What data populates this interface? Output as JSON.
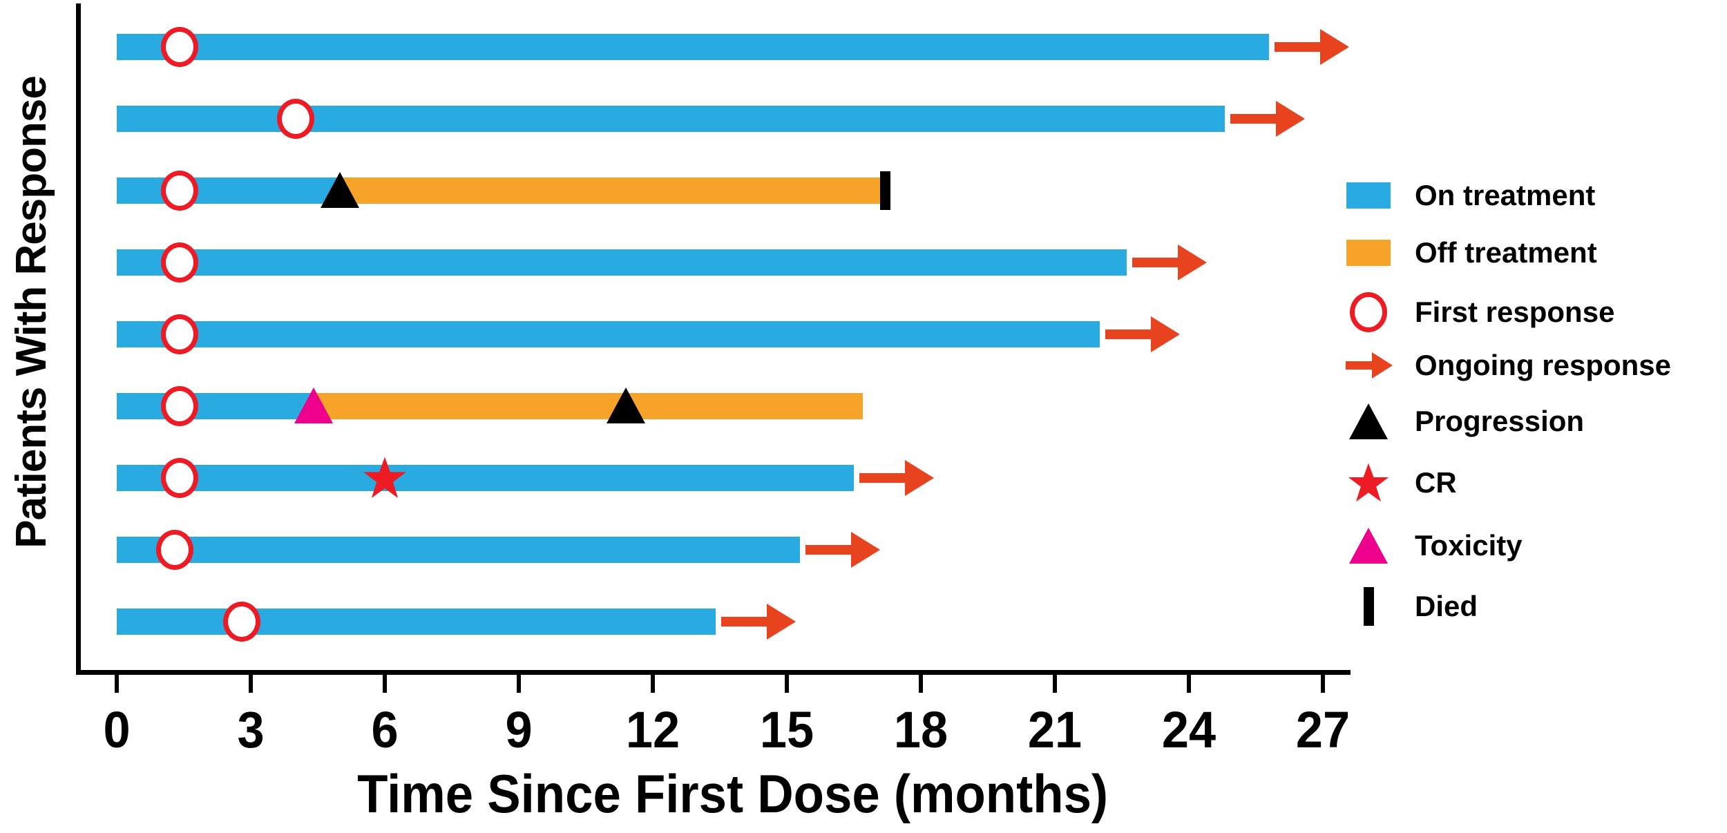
{
  "chart_data": {
    "type": "swimmer",
    "xlabel": "Time Since First Dose (months)",
    "ylabel": "Patients With Response",
    "x_ticks": [
      0,
      3,
      6,
      9,
      12,
      15,
      18,
      21,
      24,
      27
    ],
    "xlim": [
      0,
      28
    ],
    "grid": false,
    "legend_position": "right",
    "patients": [
      {
        "segments": [
          {
            "status": "on",
            "start": 0,
            "end": 25.8
          }
        ],
        "markers": [
          {
            "type": "first_response",
            "month": 1.4
          }
        ],
        "ongoing_response": true
      },
      {
        "segments": [
          {
            "status": "on",
            "start": 0,
            "end": 24.8
          }
        ],
        "markers": [
          {
            "type": "first_response",
            "month": 4.0
          }
        ],
        "ongoing_response": true
      },
      {
        "segments": [
          {
            "status": "on",
            "start": 0,
            "end": 5.0
          },
          {
            "status": "off",
            "start": 5.0,
            "end": 17.1
          }
        ],
        "markers": [
          {
            "type": "first_response",
            "month": 1.4
          },
          {
            "type": "progression",
            "month": 5.0
          },
          {
            "type": "died",
            "month": 17.2
          }
        ],
        "ongoing_response": false
      },
      {
        "segments": [
          {
            "status": "on",
            "start": 0,
            "end": 22.6
          }
        ],
        "markers": [
          {
            "type": "first_response",
            "month": 1.4
          }
        ],
        "ongoing_response": true
      },
      {
        "segments": [
          {
            "status": "on",
            "start": 0,
            "end": 22.0
          }
        ],
        "markers": [
          {
            "type": "first_response",
            "month": 1.4
          }
        ],
        "ongoing_response": true
      },
      {
        "segments": [
          {
            "status": "on",
            "start": 0,
            "end": 4.4
          },
          {
            "status": "off",
            "start": 4.4,
            "end": 16.7
          }
        ],
        "markers": [
          {
            "type": "first_response",
            "month": 1.4
          },
          {
            "type": "toxicity",
            "month": 4.4
          },
          {
            "type": "progression",
            "month": 11.4
          }
        ],
        "ongoing_response": false
      },
      {
        "segments": [
          {
            "status": "on",
            "start": 0,
            "end": 16.5
          }
        ],
        "markers": [
          {
            "type": "first_response",
            "month": 1.4
          },
          {
            "type": "cr",
            "month": 6.0
          }
        ],
        "ongoing_response": true
      },
      {
        "segments": [
          {
            "status": "on",
            "start": 0,
            "end": 15.3
          }
        ],
        "markers": [
          {
            "type": "first_response",
            "month": 1.3
          }
        ],
        "ongoing_response": true
      },
      {
        "segments": [
          {
            "status": "on",
            "start": 0,
            "end": 13.4
          }
        ],
        "markers": [
          {
            "type": "first_response",
            "month": 2.8
          }
        ],
        "ongoing_response": true
      }
    ]
  },
  "legend": {
    "items": [
      {
        "key": "on",
        "label": "On treatment"
      },
      {
        "key": "off",
        "label": "Off treatment"
      },
      {
        "key": "first_response",
        "label": "First response"
      },
      {
        "key": "ongoing",
        "label": "Ongoing response"
      },
      {
        "key": "progression",
        "label": "Progression"
      },
      {
        "key": "cr",
        "label": "CR"
      },
      {
        "key": "toxicity",
        "label": "Toxicity"
      },
      {
        "key": "died",
        "label": "Died"
      }
    ]
  },
  "colors": {
    "on_treatment": "#29ABE2",
    "off_treatment": "#F7A329",
    "first_response": "#ED1C24",
    "ongoing_response": "#E8431F",
    "progression": "#000000",
    "cr": "#ED1C24",
    "toxicity": "#EC008C",
    "died": "#000000",
    "axis": "#000000"
  }
}
